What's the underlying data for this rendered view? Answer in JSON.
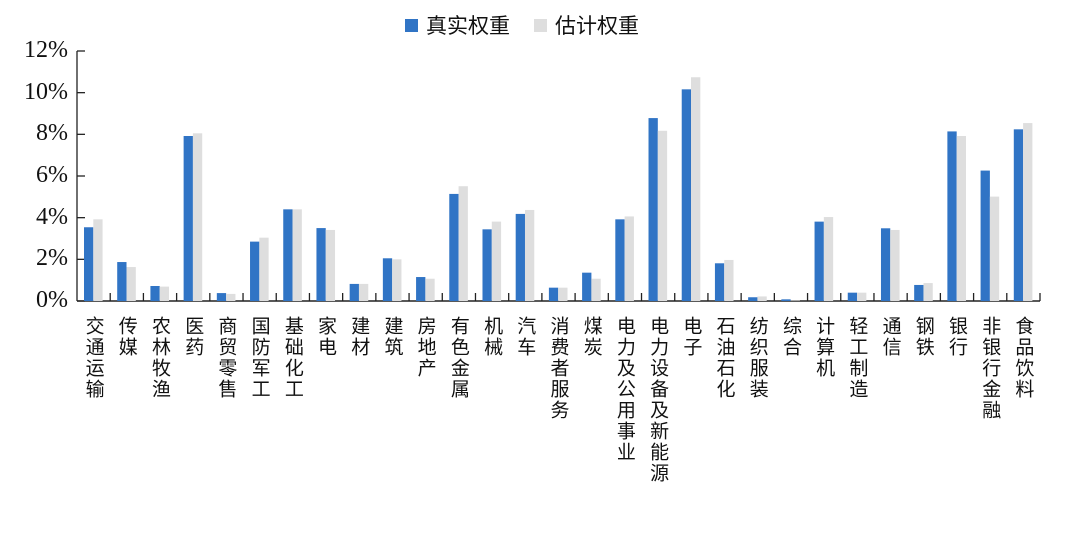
{
  "chart_data": {
    "type": "bar",
    "title": "",
    "xlabel": "",
    "ylabel": "",
    "ylim": [
      0,
      12
    ],
    "yticks": [
      "0%",
      "2%",
      "4%",
      "6%",
      "8%",
      "10%",
      "12%"
    ],
    "grid": false,
    "legend_position": "top-center",
    "categories": [
      "交通运输",
      "传媒",
      "农林牧渔",
      "医药",
      "商贸零售",
      "国防军工",
      "基础化工",
      "家电",
      "建材",
      "建筑",
      "房地产",
      "有色金属",
      "机械",
      "汽车",
      "消费者服务",
      "煤炭",
      "电力及公用事业",
      "电力设备及新能源",
      "电子",
      "石油石化",
      "纺织服装",
      "综合",
      "计算机",
      "轻工制造",
      "通信",
      "钢铁",
      "银行",
      "非银行金融",
      "食品饮料"
    ],
    "series": [
      {
        "name": "真实权重",
        "color": "#3074C5",
        "values": [
          3.54,
          1.87,
          0.72,
          7.92,
          0.38,
          2.85,
          4.4,
          3.5,
          0.82,
          2.05,
          1.15,
          5.14,
          3.44,
          4.18,
          0.64,
          1.36,
          3.92,
          8.78,
          10.16,
          1.81,
          0.18,
          0.08,
          3.81,
          0.4,
          3.49,
          0.77,
          8.14,
          6.26,
          8.24
        ]
      },
      {
        "name": "估计权重",
        "color": "#DEDEDE",
        "values": [
          3.92,
          1.63,
          0.69,
          8.05,
          0.34,
          3.04,
          4.4,
          3.41,
          0.82,
          2.0,
          1.07,
          5.51,
          3.81,
          4.37,
          0.64,
          1.07,
          4.06,
          8.17,
          10.74,
          1.97,
          0.22,
          0.02,
          4.03,
          0.4,
          3.41,
          0.86,
          7.92,
          5.01,
          8.54
        ]
      }
    ]
  }
}
